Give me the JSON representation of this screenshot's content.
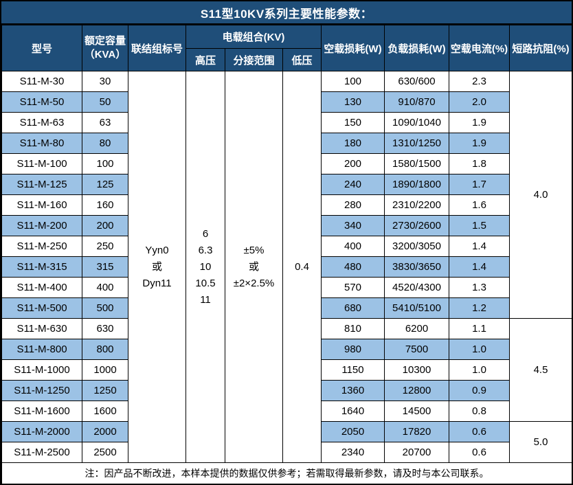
{
  "title": "S11型10KV系列主要性能参数：",
  "colors": {
    "header_bg": "#1F4E79",
    "alt_row_bg": "#9CC2E5",
    "border": "#000000",
    "header_text": "#FFFFFF"
  },
  "header": {
    "model": "型号",
    "capacity": "额定容量\n（KVA）",
    "connection": "联结组标号",
    "voltage_group": "电载组合(KV)",
    "hv": "高压",
    "tap": "分接范围",
    "lv": "低压",
    "no_load_loss": "空载损耗(W)",
    "load_loss": "负载损耗(W)",
    "no_load_current": "空载电流(%)",
    "impedance": "短路抗阻(%)"
  },
  "merged": {
    "connection": "Yyn0\n或\nDyn11",
    "hv": "6\n6.3\n10\n10.5\n11",
    "tap": "±5%\n或\n±2×2.5%",
    "lv": "0.4"
  },
  "impedance_groups": [
    {
      "value": "4.0",
      "rows": 12
    },
    {
      "value": "4.5",
      "rows": 5
    },
    {
      "value": "5.0",
      "rows": 2
    }
  ],
  "rows": [
    {
      "model": "S11-M-30",
      "capacity": "30",
      "no_load_loss": "100",
      "load_loss": "630/600",
      "no_load_current": "2.3"
    },
    {
      "model": "S11-M-50",
      "capacity": "50",
      "no_load_loss": "130",
      "load_loss": "910/870",
      "no_load_current": "2.0"
    },
    {
      "model": "S11-M-63",
      "capacity": "63",
      "no_load_loss": "150",
      "load_loss": "1090/1040",
      "no_load_current": "1.9"
    },
    {
      "model": "S11-M-80",
      "capacity": "80",
      "no_load_loss": "180",
      "load_loss": "1310/1250",
      "no_load_current": "1.9"
    },
    {
      "model": "S11-M-100",
      "capacity": "100",
      "no_load_loss": "200",
      "load_loss": "1580/1500",
      "no_load_current": "1.8"
    },
    {
      "model": "S11-M-125",
      "capacity": "125",
      "no_load_loss": "240",
      "load_loss": "1890/1800",
      "no_load_current": "1.7"
    },
    {
      "model": "S11-M-160",
      "capacity": "160",
      "no_load_loss": "280",
      "load_loss": "2310/2200",
      "no_load_current": "1.6"
    },
    {
      "model": "S11-M-200",
      "capacity": "200",
      "no_load_loss": "340",
      "load_loss": "2730/2600",
      "no_load_current": "1.5"
    },
    {
      "model": "S11-M-250",
      "capacity": "250",
      "no_load_loss": "400",
      "load_loss": "3200/3050",
      "no_load_current": "1.4"
    },
    {
      "model": "S11-M-315",
      "capacity": "315",
      "no_load_loss": "480",
      "load_loss": "3830/3650",
      "no_load_current": "1.4"
    },
    {
      "model": "S11-M-400",
      "capacity": "400",
      "no_load_loss": "570",
      "load_loss": "4520/4300",
      "no_load_current": "1.3"
    },
    {
      "model": "S11-M-500",
      "capacity": "500",
      "no_load_loss": "680",
      "load_loss": "5410/5100",
      "no_load_current": "1.2"
    },
    {
      "model": "S11-M-630",
      "capacity": "630",
      "no_load_loss": "810",
      "load_loss": "6200",
      "no_load_current": "1.1"
    },
    {
      "model": "S11-M-800",
      "capacity": "800",
      "no_load_loss": "980",
      "load_loss": "7500",
      "no_load_current": "1.0"
    },
    {
      "model": "S11-M-1000",
      "capacity": "1000",
      "no_load_loss": "1150",
      "load_loss": "10300",
      "no_load_current": "1.0"
    },
    {
      "model": "S11-M-1250",
      "capacity": "1250",
      "no_load_loss": "1360",
      "load_loss": "12800",
      "no_load_current": "0.9"
    },
    {
      "model": "S11-M-1600",
      "capacity": "1600",
      "no_load_loss": "1640",
      "load_loss": "14500",
      "no_load_current": "0.8"
    },
    {
      "model": "S11-M-2000",
      "capacity": "2000",
      "no_load_loss": "2050",
      "load_loss": "17820",
      "no_load_current": "0.6"
    },
    {
      "model": "S11-M-2500",
      "capacity": "2500",
      "no_load_loss": "2340",
      "load_loss": "20700",
      "no_load_current": "0.6"
    }
  ],
  "note": "注：因产品不断改进，本样本提供的数据仅供参考；若需取得最新参数，请及时与本公司联系。"
}
